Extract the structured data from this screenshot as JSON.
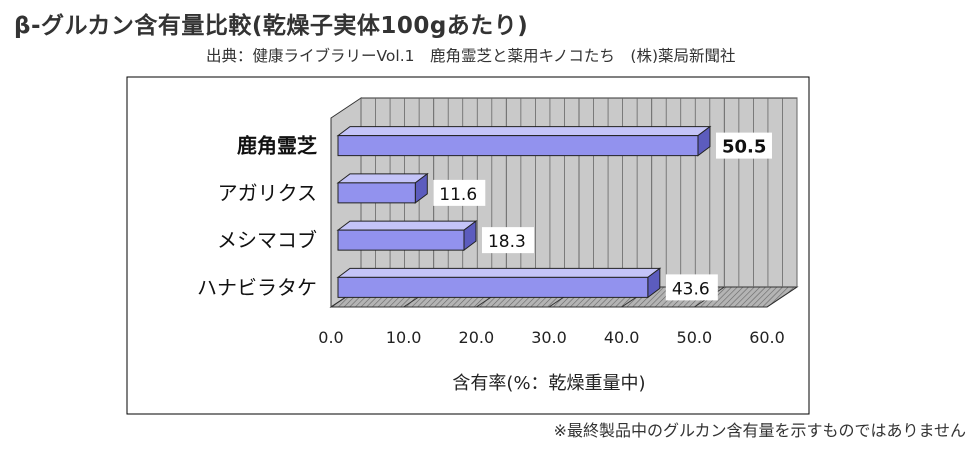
{
  "header": {
    "title": "β-グルカン含有量比較(乾燥子実体100gあたり)",
    "source": "出典：健康ライブラリーVol.1　鹿角霊芝と薬用キノコたち　(株)薬局新聞社"
  },
  "footer": {
    "note": "※最終製品中のグルカン含有量を示すものではありません"
  },
  "colors": {
    "bar_front": "#9292ee",
    "bar_top": "#c4c4f8",
    "bar_side": "#5c5cbe",
    "wall": "#c9c9c9",
    "floor": "#b4b4b4",
    "hatch": "#555555"
  },
  "chart_data": {
    "type": "bar",
    "orientation": "horizontal",
    "style": "3d",
    "categories": [
      "鹿角霊芝",
      "アガリクス",
      "メシマコブ",
      "ハナビラタケ"
    ],
    "values": [
      50.5,
      11.6,
      18.3,
      43.6
    ],
    "data_labels": [
      "50.5",
      "11.6",
      "18.3",
      "43.6"
    ],
    "highlighted_category": "鹿角霊芝",
    "xlabel": "含有率(%：乾燥重量中)",
    "xlim": [
      0,
      60
    ],
    "xticks": [
      "0.0",
      "10.0",
      "20.0",
      "30.0",
      "40.0",
      "50.0",
      "60.0"
    ],
    "grid": true
  }
}
